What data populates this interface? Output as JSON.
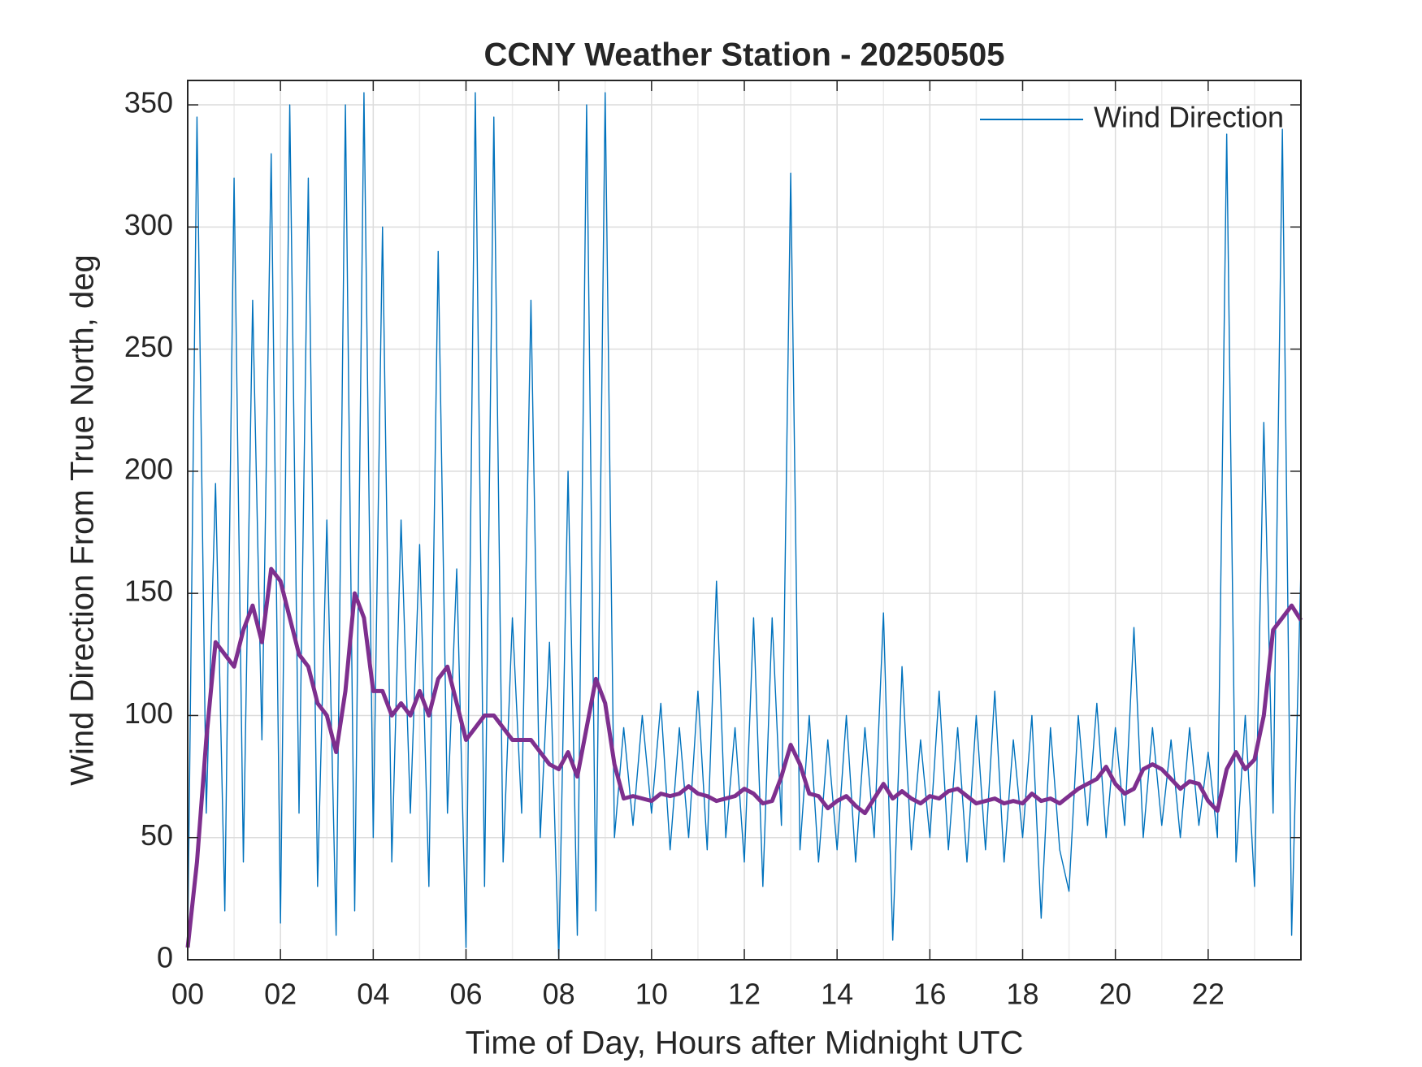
{
  "chart_data": {
    "type": "line",
    "title": "CCNY Weather Station - 20250505",
    "xlabel": "Time of Day, Hours after Midnight UTC",
    "ylabel": "Wind Direction From True North, deg",
    "xlim": [
      0,
      24
    ],
    "ylim": [
      0,
      360
    ],
    "xticks": [
      {
        "value": 0,
        "label": "00"
      },
      {
        "value": 2,
        "label": "02"
      },
      {
        "value": 4,
        "label": "04"
      },
      {
        "value": 6,
        "label": "06"
      },
      {
        "value": 8,
        "label": "08"
      },
      10,
      12,
      14,
      16,
      18,
      20,
      22
    ],
    "yticks": [
      0,
      50,
      100,
      150,
      200,
      250,
      300,
      350
    ],
    "grid": true,
    "minor_xgrid": true,
    "legend": "northeast",
    "x": [
      0,
      0.2,
      0.4,
      0.6,
      0.8,
      1,
      1.2,
      1.4,
      1.6,
      1.8,
      2,
      2.2,
      2.4,
      2.6,
      2.8,
      3,
      3.2,
      3.4,
      3.6,
      3.8,
      4,
      4.2,
      4.4,
      4.6,
      4.8,
      5,
      5.2,
      5.4,
      5.6,
      5.8,
      6,
      6.2,
      6.4,
      6.6,
      6.8,
      7,
      7.2,
      7.4,
      7.6,
      7.8,
      8,
      8.2,
      8.4,
      8.6,
      8.8,
      9,
      9.2,
      9.4,
      9.6,
      9.8,
      10,
      10.2,
      10.4,
      10.6,
      10.8,
      11,
      11.2,
      11.4,
      11.6,
      11.8,
      12,
      12.2,
      12.4,
      12.6,
      12.8,
      13,
      13.2,
      13.4,
      13.6,
      13.8,
      14,
      14.2,
      14.4,
      14.6,
      14.8,
      15,
      15.2,
      15.4,
      15.6,
      15.8,
      16,
      16.2,
      16.4,
      16.6,
      16.8,
      17,
      17.2,
      17.4,
      17.6,
      17.8,
      18,
      18.2,
      18.4,
      18.6,
      18.8,
      19,
      19.2,
      19.4,
      19.6,
      19.8,
      20,
      20.2,
      20.4,
      20.6,
      20.8,
      21,
      21.2,
      21.4,
      21.6,
      21.8,
      22,
      22.2,
      22.4,
      22.6,
      22.8,
      23,
      23.2,
      23.4,
      23.6,
      23.8,
      24
    ],
    "series": [
      {
        "name": "Wind Direction",
        "color": "#0072bd",
        "width": 1.4,
        "values": [
          5,
          345,
          60,
          195,
          20,
          320,
          40,
          270,
          90,
          330,
          15,
          350,
          60,
          320,
          30,
          180,
          10,
          350,
          20,
          355,
          50,
          300,
          40,
          180,
          60,
          170,
          30,
          290,
          60,
          160,
          5,
          355,
          30,
          345,
          40,
          140,
          60,
          270,
          50,
          130,
          0,
          200,
          10,
          350,
          20,
          355,
          50,
          95,
          55,
          100,
          60,
          105,
          45,
          95,
          50,
          110,
          45,
          155,
          50,
          95,
          40,
          140,
          30,
          140,
          55,
          322,
          45,
          100,
          40,
          90,
          45,
          100,
          40,
          95,
          50,
          142,
          8,
          120,
          45,
          90,
          50,
          110,
          45,
          95,
          40,
          100,
          45,
          110,
          40,
          90,
          50,
          100,
          17,
          95,
          45,
          28,
          100,
          55,
          105,
          50,
          95,
          55,
          136,
          50,
          95,
          55,
          90,
          50,
          95,
          55,
          85,
          50,
          338,
          40,
          100,
          30,
          220,
          60,
          340,
          10,
          160
        ]
      },
      {
        "color": "#7e2f8e",
        "width": 5,
        "values": [
          5,
          40,
          90,
          130,
          125,
          120,
          135,
          145,
          130,
          160,
          155,
          140,
          125,
          120,
          105,
          100,
          85,
          110,
          150,
          140,
          110,
          110,
          100,
          105,
          100,
          110,
          100,
          115,
          120,
          105,
          90,
          95,
          100,
          100,
          95,
          90,
          90,
          90,
          85,
          80,
          78,
          85,
          75,
          95,
          115,
          105,
          80,
          66,
          67,
          66,
          65,
          68,
          67,
          68,
          71,
          68,
          67,
          65,
          66,
          67,
          70,
          68,
          64,
          65,
          75,
          88,
          80,
          68,
          67,
          62,
          65,
          67,
          63,
          60,
          66,
          72,
          66,
          69,
          66,
          64,
          67,
          66,
          69,
          70,
          67,
          64,
          65,
          66,
          64,
          65,
          64,
          68,
          65,
          66,
          64,
          67,
          70,
          72,
          74,
          79,
          72,
          68,
          70,
          78,
          80,
          78,
          74,
          70,
          73,
          72,
          65,
          61,
          78,
          85,
          78,
          82,
          100,
          135,
          140,
          145,
          139
        ]
      }
    ]
  }
}
